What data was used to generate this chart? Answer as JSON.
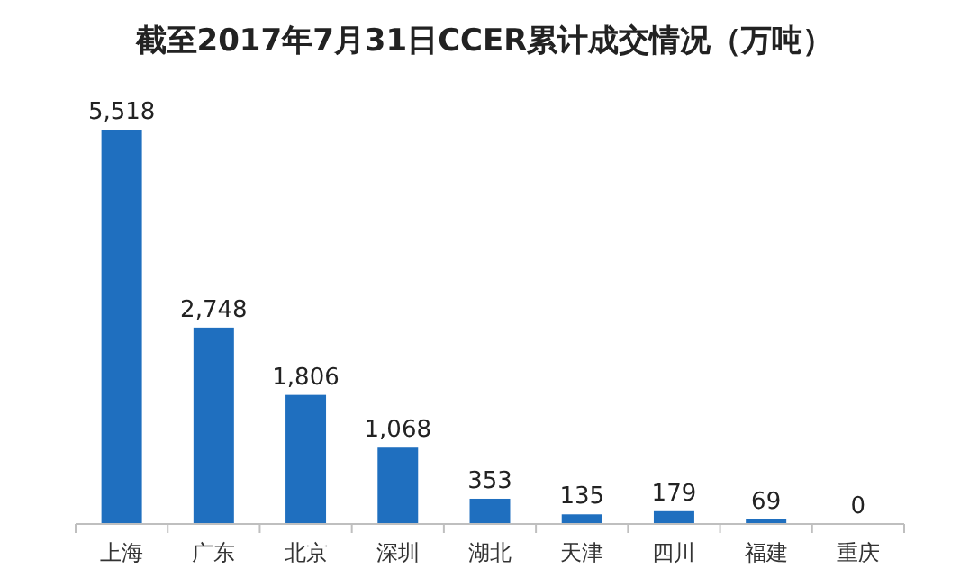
{
  "chart_data": {
    "type": "bar",
    "title": "截至2017年7月31日CCER累计成交情况（万吨）",
    "categories": [
      "上海",
      "广东",
      "北京",
      "深圳",
      "湖北",
      "天津",
      "四川",
      "福建",
      "重庆"
    ],
    "values": [
      5518,
      2748,
      1806,
      1068,
      353,
      135,
      179,
      69,
      0
    ],
    "value_labels": [
      "5,518",
      "2,748",
      "1,806",
      "1,068",
      "353",
      "135",
      "179",
      "69",
      "0"
    ],
    "color": "#1f6fbf"
  }
}
